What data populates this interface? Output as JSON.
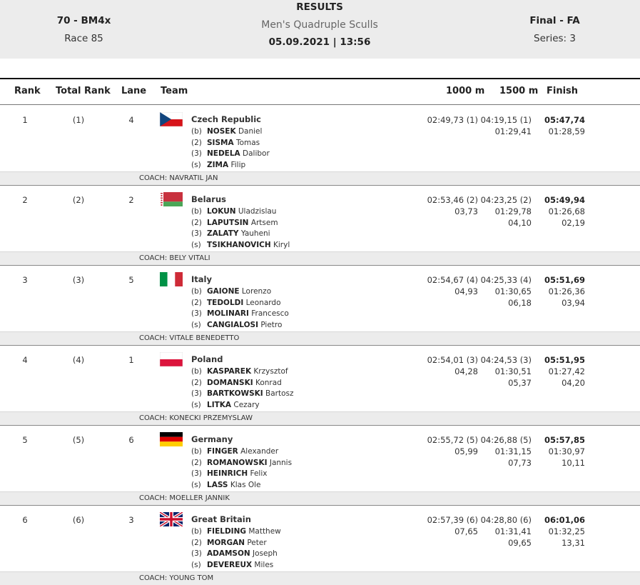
{
  "header": {
    "event_code": "70 - BM4x",
    "race": "Race 85",
    "results_label": "RESULTS",
    "event_name": "Men's Quadruple Sculls",
    "datetime": "05.09.2021 | 13:56",
    "phase": "Final - FA",
    "series": "Series: 3"
  },
  "columns": {
    "rank": "Rank",
    "total_rank": "Total Rank",
    "lane": "Lane",
    "team": "Team",
    "split1": "1000 m",
    "split2": "1500 m",
    "finish": "Finish"
  },
  "crews": [
    {
      "rank": "1",
      "total_rank": "(1)",
      "lane": "4",
      "country": "Czech Republic",
      "flag": "czech-flag-icon",
      "rowers": [
        {
          "pos": "(b)",
          "last": "NOSEK",
          "first": "Daniel"
        },
        {
          "pos": "(2)",
          "last": "SISMA",
          "first": "Tomas"
        },
        {
          "pos": "(3)",
          "last": "NEDELA",
          "first": "Dalibor"
        },
        {
          "pos": "(s)",
          "last": "ZIMA",
          "first": "Filip"
        }
      ],
      "split1": [
        "02:49,73 (1)",
        "",
        ""
      ],
      "split2": [
        "04:19,15 (1)",
        "01:29,41",
        ""
      ],
      "finish": [
        "05:47,74",
        "01:28,59",
        ""
      ],
      "coach": "COACH: NAVRATIL JAN"
    },
    {
      "rank": "2",
      "total_rank": "(2)",
      "lane": "2",
      "country": "Belarus",
      "flag": "belarus-flag-icon",
      "rowers": [
        {
          "pos": "(b)",
          "last": "LOKUN",
          "first": "Uladzislau"
        },
        {
          "pos": "(2)",
          "last": "LAPUTSIN",
          "first": "Artsem"
        },
        {
          "pos": "(3)",
          "last": "ZALATY",
          "first": "Yauheni"
        },
        {
          "pos": "(s)",
          "last": "TSIKHANOVICH",
          "first": "Kiryl"
        }
      ],
      "split1": [
        "02:53,46 (2)",
        "03,73",
        ""
      ],
      "split2": [
        "04:23,25 (2)",
        "01:29,78",
        "04,10"
      ],
      "finish": [
        "05:49,94",
        "01:26,68",
        "02,19"
      ],
      "coach": "COACH: BELY VITALI"
    },
    {
      "rank": "3",
      "total_rank": "(3)",
      "lane": "5",
      "country": "Italy",
      "flag": "italy-flag-icon",
      "rowers": [
        {
          "pos": "(b)",
          "last": "GAIONE",
          "first": "Lorenzo"
        },
        {
          "pos": "(2)",
          "last": "TEDOLDI",
          "first": "Leonardo"
        },
        {
          "pos": "(3)",
          "last": "MOLINARI",
          "first": "Francesco"
        },
        {
          "pos": "(s)",
          "last": "CANGIALOSI",
          "first": "Pietro"
        }
      ],
      "split1": [
        "02:54,67 (4)",
        "04,93",
        ""
      ],
      "split2": [
        "04:25,33 (4)",
        "01:30,65",
        "06,18"
      ],
      "finish": [
        "05:51,69",
        "01:26,36",
        "03,94"
      ],
      "coach": "COACH: VITALE BENEDETTO"
    },
    {
      "rank": "4",
      "total_rank": "(4)",
      "lane": "1",
      "country": "Poland",
      "flag": "poland-flag-icon",
      "rowers": [
        {
          "pos": "(b)",
          "last": "KASPAREK",
          "first": "Krzysztof"
        },
        {
          "pos": "(2)",
          "last": "DOMANSKI",
          "first": "Konrad"
        },
        {
          "pos": "(3)",
          "last": "BARTKOWSKI",
          "first": "Bartosz"
        },
        {
          "pos": "(s)",
          "last": "LITKA",
          "first": "Cezary"
        }
      ],
      "split1": [
        "02:54,01 (3)",
        "04,28",
        ""
      ],
      "split2": [
        "04:24,53 (3)",
        "01:30,51",
        "05,37"
      ],
      "finish": [
        "05:51,95",
        "01:27,42",
        "04,20"
      ],
      "coach": "COACH: KONECKI PRZEMYSLAW"
    },
    {
      "rank": "5",
      "total_rank": "(5)",
      "lane": "6",
      "country": "Germany",
      "flag": "germany-flag-icon",
      "rowers": [
        {
          "pos": "(b)",
          "last": "FINGER",
          "first": "Alexander"
        },
        {
          "pos": "(2)",
          "last": "ROMANOWSKI",
          "first": "Jannis"
        },
        {
          "pos": "(3)",
          "last": "HEINRICH",
          "first": "Felix"
        },
        {
          "pos": "(s)",
          "last": "LASS",
          "first": "Klas Ole"
        }
      ],
      "split1": [
        "02:55,72 (5)",
        "05,99",
        ""
      ],
      "split2": [
        "04:26,88 (5)",
        "01:31,15",
        "07,73"
      ],
      "finish": [
        "05:57,85",
        "01:30,97",
        "10,11"
      ],
      "coach": "COACH: MOELLER JANNIK"
    },
    {
      "rank": "6",
      "total_rank": "(6)",
      "lane": "3",
      "country": "Great Britain",
      "flag": "great-britain-flag-icon",
      "rowers": [
        {
          "pos": "(b)",
          "last": "FIELDING",
          "first": "Matthew"
        },
        {
          "pos": "(2)",
          "last": "MORGAN",
          "first": "Peter"
        },
        {
          "pos": "(3)",
          "last": "ADAMSON",
          "first": "Joseph"
        },
        {
          "pos": "(s)",
          "last": "DEVEREUX",
          "first": "Miles"
        }
      ],
      "split1": [
        "02:57,39 (6)",
        "07,65",
        ""
      ],
      "split2": [
        "04:28,80 (6)",
        "01:31,41",
        "09,65"
      ],
      "finish": [
        "06:01,06",
        "01:32,25",
        "13,31"
      ],
      "coach": "COACH: YOUNG TOM"
    }
  ]
}
